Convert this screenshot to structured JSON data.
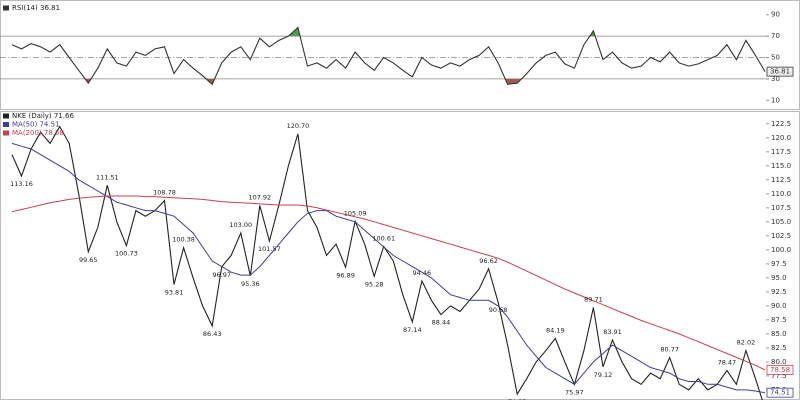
{
  "chart_data": [
    {
      "type": "line",
      "categories": [
        null,
        null,
        null,
        null,
        null,
        null,
        null,
        null,
        null,
        null,
        null,
        null,
        null,
        null,
        null,
        null,
        null,
        null,
        null,
        null,
        null,
        null,
        null,
        null,
        null,
        null,
        null,
        null,
        null,
        null,
        null,
        null,
        null,
        null,
        null,
        null,
        null,
        null,
        null,
        null,
        null,
        null,
        null,
        null,
        null,
        null,
        null,
        null,
        null,
        null,
        null,
        null,
        null,
        null,
        null,
        null,
        null,
        null,
        null,
        null,
        null,
        null,
        null,
        null,
        null,
        null,
        null,
        null,
        null,
        null,
        null,
        null,
        null,
        null,
        null,
        null,
        null,
        null,
        null,
        null
      ],
      "series": [
        {
          "name": "RSI(14)",
          "color": "#333333",
          "values": [
            62,
            58,
            63,
            60,
            55,
            62,
            50,
            38,
            26,
            40,
            58,
            45,
            42,
            55,
            52,
            58,
            60,
            35,
            48,
            40,
            33,
            25,
            45,
            55,
            60,
            48,
            68,
            60,
            66,
            70,
            78,
            42,
            45,
            40,
            48,
            40,
            55,
            45,
            38,
            50,
            45,
            38,
            32,
            50,
            43,
            40,
            45,
            42,
            48,
            52,
            60,
            45,
            25,
            26,
            35,
            45,
            52,
            55,
            44,
            40,
            62,
            75,
            48,
            55,
            45,
            40,
            42,
            50,
            46,
            55,
            45,
            42,
            44,
            48,
            52,
            62,
            48,
            66,
            52,
            36.81
          ]
        }
      ],
      "ylim": [
        0,
        100
      ],
      "yticks": [
        10,
        30,
        50,
        70,
        90
      ],
      "overbought_color": "#4e9a4e",
      "oversold_color": "#a05a55"
    },
    {
      "type": "line",
      "categories": [
        null,
        null,
        null,
        null,
        null,
        null,
        null,
        null,
        null,
        null,
        null,
        null,
        null,
        null,
        null,
        null,
        null,
        null,
        null,
        null,
        null,
        null,
        null,
        null,
        null,
        null,
        null,
        null,
        null,
        null,
        null,
        null,
        null,
        null,
        null,
        null,
        null,
        null,
        null,
        null,
        null,
        null,
        null,
        null,
        null,
        null,
        null,
        null,
        null,
        null,
        null,
        null,
        null,
        null,
        null,
        null,
        null,
        null,
        null,
        null,
        null,
        null,
        null,
        null,
        null,
        null,
        null,
        null,
        null,
        null,
        null,
        null,
        null,
        null,
        null,
        null,
        null,
        null,
        null,
        null
      ],
      "series": [
        {
          "name": "NKE (Daily)",
          "color": "#222222",
          "values": [
            117,
            113.16,
            118,
            121,
            119,
            122,
            119,
            110,
            99.65,
            104,
            111.51,
            105,
            100.73,
            107,
            106,
            107,
            108.78,
            93.81,
            100.38,
            95,
            90,
            86.43,
            96.97,
            99,
            103.0,
            95.36,
            107.92,
            101.57,
            108,
            115,
            120.7,
            107,
            104,
            99,
            101,
            96.89,
            105.09,
            101,
            95.28,
            100.61,
            98,
            92,
            87.14,
            94.46,
            91,
            88.44,
            90,
            89,
            91,
            93,
            96.62,
            90.68,
            83,
            74.25,
            77,
            80,
            82,
            84.19,
            80,
            75.97,
            82,
            89.71,
            79.12,
            83.91,
            80,
            77,
            76,
            78,
            77,
            80.77,
            76,
            75,
            77,
            75,
            76,
            78.47,
            76,
            82.02,
            77,
            71.66
          ],
          "value_labels": [
            null,
            "113.16",
            null,
            null,
            null,
            null,
            null,
            null,
            "99.65",
            null,
            "111.51",
            null,
            "100.73",
            null,
            null,
            null,
            "108.78",
            "93.81",
            "100.38",
            null,
            null,
            "86.43",
            "96.97",
            null,
            "103.00",
            "95.36",
            "107.92",
            "101.57",
            null,
            null,
            "120.70",
            null,
            null,
            null,
            null,
            "96.89",
            "105.09",
            null,
            "95.28",
            "100.61",
            null,
            null,
            "87.14",
            "94.46",
            null,
            "88.44",
            null,
            null,
            null,
            null,
            "96.62",
            "90.68",
            null,
            "74.25",
            null,
            null,
            null,
            "84.19",
            null,
            "75.97",
            null,
            "89.71",
            "79.12",
            "83.91",
            null,
            null,
            null,
            null,
            null,
            "80.77",
            null,
            null,
            null,
            null,
            null,
            "78.47",
            null,
            "82.02",
            null,
            null
          ]
        },
        {
          "name": "MA(50)",
          "color": "#3c3c9c",
          "values": [
            119,
            118.5,
            118,
            117,
            116,
            115,
            114,
            112.5,
            111.5,
            110.5,
            109.5,
            108.5,
            108,
            107.5,
            107,
            107,
            106.5,
            106,
            104.5,
            103,
            100.5,
            98,
            97,
            96,
            95.5,
            95.5,
            97,
            99,
            101,
            103,
            105,
            106.5,
            107,
            107,
            106,
            105.5,
            105,
            103.5,
            102,
            100.5,
            99,
            98,
            97,
            96,
            95,
            93.5,
            92,
            91.5,
            91,
            91,
            91,
            90,
            88,
            85.5,
            83,
            81,
            79,
            78,
            77,
            76,
            78,
            80,
            81.5,
            83,
            82,
            81,
            80,
            79,
            78.5,
            78,
            77,
            76.5,
            76.5,
            76,
            76,
            75.5,
            75,
            75,
            74.8,
            74.51
          ]
        },
        {
          "name": "MA(200)",
          "color": "#c8404c",
          "values": [
            106.8,
            107.2,
            107.6,
            108,
            108.4,
            108.7,
            109,
            109.2,
            109.4,
            109.5,
            109.6,
            109.6,
            109.6,
            109.6,
            109.5,
            109.5,
            109.4,
            109.3,
            109.2,
            109.1,
            109,
            108.8,
            108.6,
            108.5,
            108.4,
            108.3,
            108.2,
            108.1,
            108,
            108,
            108,
            107.8,
            107.5,
            107.1,
            106.7,
            106.3,
            105.9,
            105.5,
            105,
            104.5,
            104,
            103.5,
            103,
            102.5,
            102,
            101.5,
            101,
            100.5,
            100,
            99.5,
            99,
            98.5,
            97.8,
            97,
            96.2,
            95.4,
            94.6,
            93.8,
            93,
            92.3,
            91.6,
            90.9,
            90.2,
            89.5,
            88.8,
            88.1,
            87.4,
            86.8,
            86.2,
            85.6,
            85,
            84.3,
            83.6,
            82.9,
            82.2,
            81.5,
            80.8,
            80.1,
            79.4,
            78.58
          ]
        }
      ],
      "ylim": [
        73.2,
        124.6
      ],
      "yticks": [
        {
          "value": 75,
          "label": "75.0"
        },
        {
          "value": 77.5,
          "label": "77.5"
        },
        {
          "value": 80,
          "label": "80.0"
        },
        {
          "value": 82.5,
          "label": "82.5"
        },
        {
          "value": 85,
          "label": "85.0"
        },
        {
          "value": 87.5,
          "label": "87.5"
        },
        {
          "value": 90,
          "label": "90.0"
        },
        {
          "value": 92.5,
          "label": "92.5"
        },
        {
          "value": 95,
          "label": "95.0"
        },
        {
          "value": 97.5,
          "label": "97.5"
        },
        {
          "value": 100,
          "label": "100.0"
        },
        {
          "value": 102.5,
          "label": "102.5"
        },
        {
          "value": 105,
          "label": "105.0"
        },
        {
          "value": 107.5,
          "label": "107.5"
        },
        {
          "value": 110,
          "label": "110.0"
        },
        {
          "value": 112.5,
          "label": "112.5"
        },
        {
          "value": 115,
          "label": "115.0"
        },
        {
          "value": 117.5,
          "label": "117.5"
        },
        {
          "value": 120,
          "label": "120.0"
        },
        {
          "value": 122.5,
          "label": "122.5"
        }
      ]
    }
  ]
}
